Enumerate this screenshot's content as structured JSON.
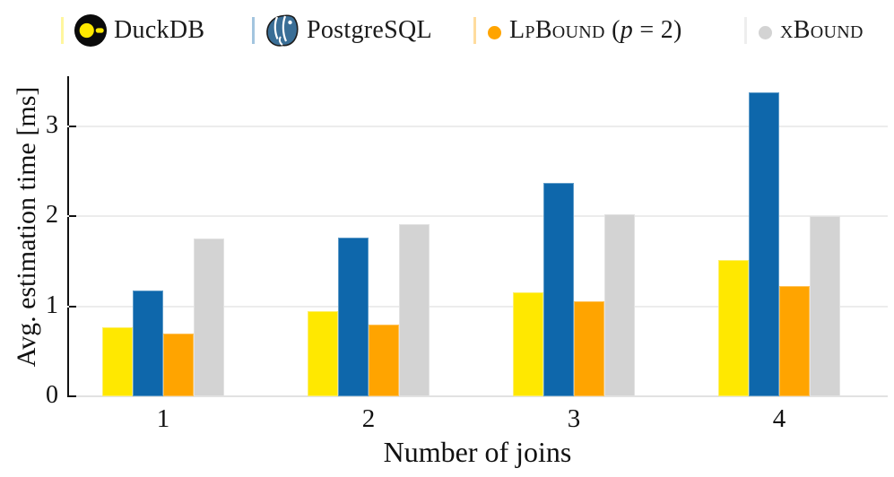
{
  "legend": {
    "items": [
      {
        "label": "DuckDB",
        "marker": "duckdb-logo",
        "color": "#FFE800"
      },
      {
        "label": "PostgreSQL",
        "marker": "postgresql-logo",
        "color": "#0E67AB"
      },
      {
        "label": "LpBound",
        "suffix_open": " (",
        "suffix_var": "p",
        "suffix_close": " = 2)",
        "marker": "orange-dot",
        "color": "#FFA400"
      },
      {
        "label": "xBound",
        "marker": "gray-dot",
        "color": "#D3D3D3"
      }
    ]
  },
  "chart_data": {
    "type": "bar",
    "categories": [
      "1",
      "2",
      "3",
      "4"
    ],
    "series": [
      {
        "name": "DuckDB",
        "key": "duckdb",
        "color": "#FFE800",
        "edge": "#fdef6e",
        "values": [
          0.77,
          0.95,
          1.16,
          1.52
        ]
      },
      {
        "name": "PostgreSQL",
        "key": "postgresql",
        "color": "#0E67AB",
        "edge": "#5e9bc8",
        "values": [
          1.18,
          1.76,
          2.37,
          3.38
        ]
      },
      {
        "name": "LpBound (p = 2)",
        "key": "lpbound",
        "color": "#FFA400",
        "edge": "#ffc35c",
        "values": [
          0.7,
          0.8,
          1.06,
          1.23
        ]
      },
      {
        "name": "xBound",
        "key": "xbound",
        "color": "#D3D3D3",
        "edge": "#e2e2e2",
        "values": [
          1.75,
          1.91,
          2.02,
          2.0
        ]
      }
    ],
    "title": "",
    "xlabel": "Number of joins",
    "ylabel": "Avg. estimation time [ms]",
    "ylim": [
      0,
      3.56
    ],
    "yticks": [
      0,
      1,
      2,
      3
    ],
    "grid": "horizontal-light",
    "legend_position": "top"
  }
}
